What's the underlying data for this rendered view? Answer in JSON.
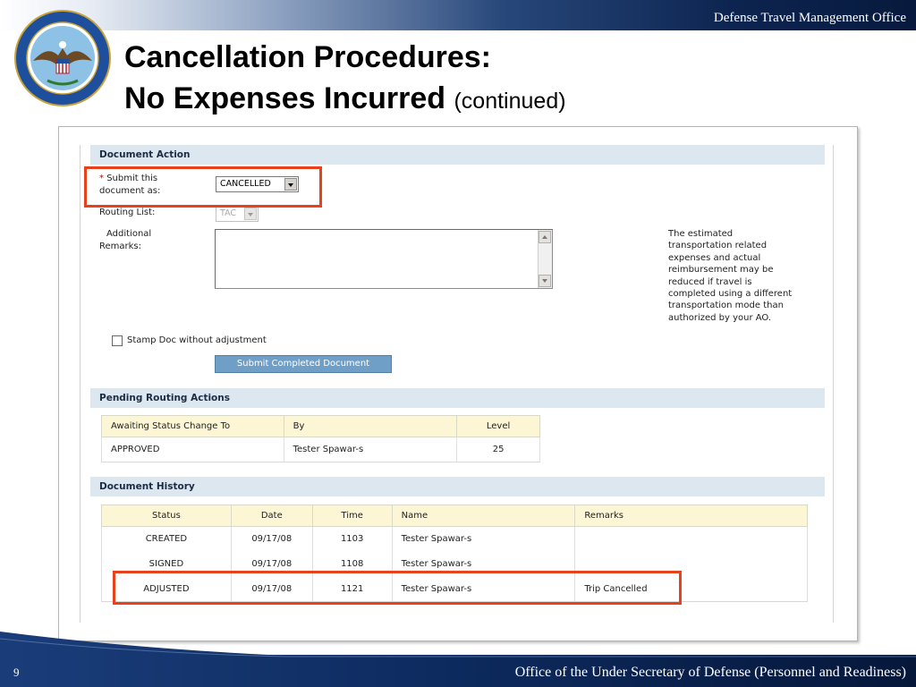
{
  "slide": {
    "org_top": "Defense Travel Management Office",
    "title_line1": "Cancellation Procedures:",
    "title_line2_main": "No Expenses Incurred",
    "title_line2_sub": "(continued)",
    "page_number": "9",
    "org_bottom": "Office of the Under Secretary of Defense (Personnel and Readiness)",
    "seal_icon": "dod-seal-icon",
    "seal_text_top": "Defense Travel Management Office",
    "seal_text_bottom": "Department of Defense"
  },
  "document_action": {
    "header": "Document Action",
    "required_mark": "*",
    "submit_label_line1": "Submit this",
    "submit_label_line2": "document as:",
    "submit_value": "CANCELLED",
    "routing_label": "Routing List:",
    "routing_value": "TAC",
    "remarks_label_line1": "Additional",
    "remarks_label_line2": "Remarks:",
    "remarks_value": "",
    "note": [
      "The estimated",
      "transportation related",
      "expenses and actual",
      "reimbursement may be",
      "reduced if travel is",
      "completed using a different",
      "transportation mode than",
      "authorized by your AO."
    ],
    "stamp_label": "Stamp Doc without adjustment",
    "stamp_checked": false,
    "submit_button": "Submit Completed Document"
  },
  "pending_routing": {
    "header": "Pending Routing Actions",
    "columns": [
      "Awaiting Status Change To",
      "By",
      "Level"
    ],
    "rows": [
      [
        "APPROVED",
        "Tester Spawar-s",
        "25"
      ]
    ]
  },
  "document_history": {
    "header": "Document History",
    "columns": [
      "Status",
      "Date",
      "Time",
      "Name",
      "Remarks"
    ],
    "rows": [
      [
        "CREATED",
        "09/17/08",
        "1103",
        "Tester Spawar-s",
        ""
      ],
      [
        "SIGNED",
        "09/17/08",
        "1108",
        "Tester Spawar-s",
        ""
      ],
      [
        "ADJUSTED",
        "09/17/08",
        "1121",
        "Tester Spawar-s",
        "Trip Cancelled"
      ]
    ]
  },
  "colors": {
    "highlight": "#e8411b",
    "section_header_bg": "#dde7f0",
    "table_header_bg": "#fdf6d4",
    "button_bg": "#6f9fc6",
    "navy": "#0d2450"
  }
}
